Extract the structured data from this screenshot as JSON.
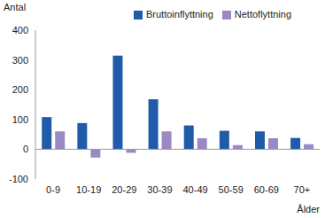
{
  "chart_data": {
    "type": "bar",
    "y_label": "Antal",
    "x_label": "Ålder",
    "categories": [
      "0-9",
      "10-19",
      "20-29",
      "30-39",
      "40-49",
      "50-59",
      "60-69",
      "70+"
    ],
    "series": [
      {
        "name": "Bruttoinflyttning",
        "color": "#1f5ba8",
        "values": [
          108,
          88,
          315,
          168,
          80,
          62,
          60,
          38
        ]
      },
      {
        "name": "Nettoflyttning",
        "color": "#9b88c5",
        "values": [
          60,
          -28,
          -12,
          60,
          37,
          14,
          37,
          17
        ]
      }
    ],
    "ylim": [
      -100,
      400
    ],
    "yticks": [
      -100,
      0,
      100,
      200,
      300,
      400
    ],
    "grid": false,
    "legend": "top"
  }
}
